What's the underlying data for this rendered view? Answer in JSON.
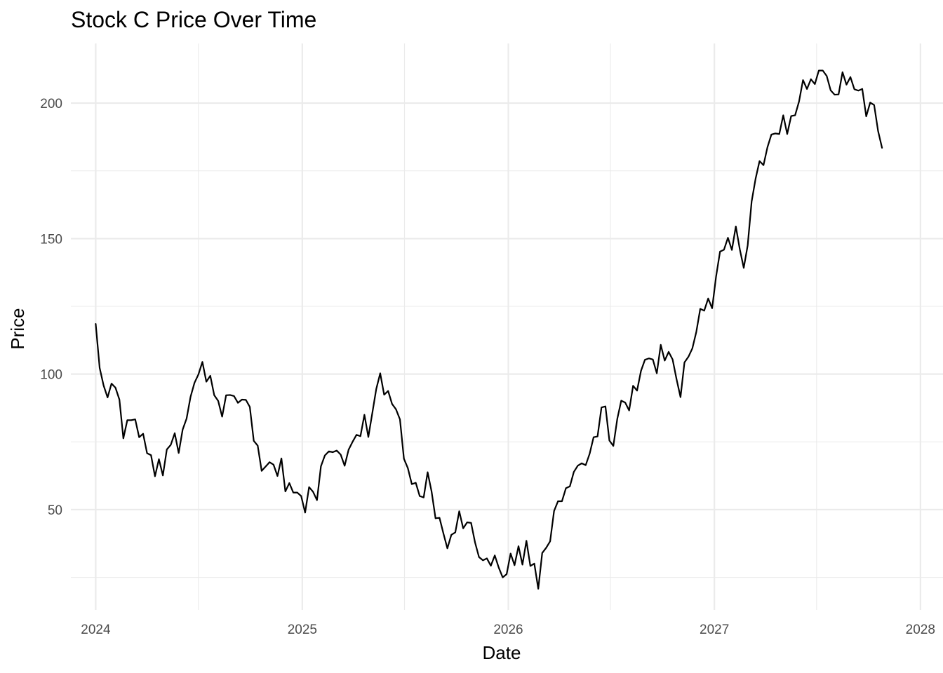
{
  "chart_data": {
    "type": "line",
    "title": "Stock C Price Over Time",
    "xlabel": "Date",
    "ylabel": "Price",
    "xlim": [
      "2023-11-18",
      "2028-02-10"
    ],
    "ylim": [
      13,
      222
    ],
    "x_ticks": [
      {
        "value": "2024-01-01",
        "label": "2024"
      },
      {
        "value": "2025-01-01",
        "label": "2025"
      },
      {
        "value": "2026-01-01",
        "label": "2026"
      },
      {
        "value": "2027-01-01",
        "label": "2027"
      },
      {
        "value": "2028-01-01",
        "label": "2028"
      }
    ],
    "x_minor_ticks": [
      "2024-07-01",
      "2025-07-01",
      "2026-07-01",
      "2027-07-01"
    ],
    "y_ticks": [
      50,
      100,
      150,
      200
    ],
    "y_minor_ticks": [
      25,
      75,
      125,
      175
    ],
    "grid": true,
    "legend": "none",
    "line_color": "#000000",
    "series": [
      {
        "x": [
          "2024-01-01",
          "2024-01-08",
          "2024-01-15",
          "2024-01-22",
          "2024-01-29",
          "2024-02-05",
          "2024-02-12",
          "2024-02-19",
          "2024-02-26",
          "2024-03-04",
          "2024-03-11",
          "2024-03-18",
          "2024-03-25",
          "2024-04-01",
          "2024-04-08",
          "2024-04-15",
          "2024-04-22",
          "2024-04-29",
          "2024-05-06",
          "2024-05-13",
          "2024-05-20",
          "2024-05-27",
          "2024-06-03",
          "2024-06-10",
          "2024-06-17",
          "2024-06-24",
          "2024-07-01",
          "2024-07-08",
          "2024-07-15",
          "2024-07-22",
          "2024-07-29",
          "2024-08-05",
          "2024-08-12",
          "2024-08-19",
          "2024-08-26",
          "2024-09-02",
          "2024-09-09",
          "2024-09-16",
          "2024-09-23",
          "2024-09-30",
          "2024-10-07",
          "2024-10-14",
          "2024-10-21",
          "2024-10-28",
          "2024-11-04",
          "2024-11-11",
          "2024-11-18",
          "2024-11-25",
          "2024-12-02",
          "2024-12-09",
          "2024-12-16",
          "2024-12-23",
          "2024-12-30",
          "2025-01-06",
          "2025-01-13",
          "2025-01-20",
          "2025-01-27",
          "2025-02-03",
          "2025-02-10",
          "2025-02-17",
          "2025-02-24",
          "2025-03-03",
          "2025-03-10",
          "2025-03-17",
          "2025-03-24",
          "2025-03-31",
          "2025-04-07",
          "2025-04-14",
          "2025-04-21",
          "2025-04-28",
          "2025-05-05",
          "2025-05-12",
          "2025-05-19",
          "2025-05-26",
          "2025-06-02",
          "2025-06-09",
          "2025-06-16",
          "2025-06-23",
          "2025-06-30",
          "2025-07-07",
          "2025-07-14",
          "2025-07-21",
          "2025-07-28",
          "2025-08-04",
          "2025-08-11",
          "2025-08-18",
          "2025-08-25",
          "2025-09-01",
          "2025-09-08",
          "2025-09-15",
          "2025-09-22",
          "2025-09-29",
          "2025-10-06",
          "2025-10-13",
          "2025-10-20",
          "2025-10-27",
          "2025-11-03",
          "2025-11-10",
          "2025-11-17",
          "2025-11-24",
          "2025-12-01",
          "2025-12-08",
          "2025-12-15",
          "2025-12-22",
          "2025-12-29",
          "2026-01-05",
          "2026-01-12",
          "2026-01-19",
          "2026-01-26",
          "2026-02-02",
          "2026-02-09",
          "2026-02-16",
          "2026-02-23",
          "2026-03-02",
          "2026-03-09",
          "2026-03-16",
          "2026-03-23",
          "2026-03-30",
          "2026-04-06",
          "2026-04-13",
          "2026-04-20",
          "2026-04-27",
          "2026-05-04",
          "2026-05-11",
          "2026-05-18",
          "2026-05-25",
          "2026-06-01",
          "2026-06-08",
          "2026-06-15",
          "2026-06-22",
          "2026-06-29",
          "2026-07-06",
          "2026-07-13",
          "2026-07-20",
          "2026-07-27",
          "2026-08-03",
          "2026-08-10",
          "2026-08-17",
          "2026-08-24",
          "2026-08-31",
          "2026-09-07",
          "2026-09-14",
          "2026-09-21",
          "2026-09-28",
          "2026-10-05",
          "2026-10-12",
          "2026-10-19",
          "2026-10-26",
          "2026-11-02",
          "2026-11-09",
          "2026-11-16",
          "2026-11-23",
          "2026-11-30",
          "2026-12-07",
          "2026-12-14",
          "2026-12-21",
          "2026-12-28",
          "2027-01-04",
          "2027-01-11",
          "2027-01-18",
          "2027-01-25",
          "2027-02-01",
          "2027-02-08",
          "2027-02-15",
          "2027-02-22",
          "2027-03-01",
          "2027-03-08",
          "2027-03-15",
          "2027-03-22",
          "2027-03-29",
          "2027-04-05",
          "2027-04-12",
          "2027-04-19",
          "2027-04-26",
          "2027-05-03",
          "2027-05-10",
          "2027-05-17",
          "2027-05-24",
          "2027-05-31",
          "2027-06-07",
          "2027-06-14",
          "2027-06-21",
          "2027-06-28",
          "2027-07-05",
          "2027-07-12",
          "2027-07-19",
          "2027-07-26",
          "2027-08-02",
          "2027-08-09",
          "2027-08-16",
          "2027-08-23",
          "2027-08-30",
          "2027-09-06",
          "2027-09-13",
          "2027-09-20",
          "2027-09-27",
          "2027-10-04",
          "2027-10-11",
          "2027-10-18",
          "2027-10-25"
        ],
        "values": [
          118.5,
          102.3,
          95.8,
          91.4,
          96.5,
          95.0,
          90.6,
          76.3,
          83.0,
          83.0,
          83.3,
          76.7,
          78.0,
          70.8,
          70.1,
          62.3,
          68.6,
          62.6,
          72.2,
          73.9,
          78.2,
          70.9,
          79.5,
          83.6,
          91.6,
          96.8,
          99.9,
          104.5,
          97.2,
          99.4,
          92.2,
          90.1,
          84.3,
          92.2,
          92.3,
          91.9,
          89.4,
          90.6,
          90.5,
          87.9,
          75.4,
          73.6,
          64.3,
          65.9,
          67.5,
          66.6,
          62.4,
          68.9,
          56.7,
          59.8,
          56.3,
          56.3,
          55.0,
          48.9,
          58.3,
          56.6,
          53.5,
          66.0,
          70.0,
          71.5,
          71.2,
          71.8,
          70.3,
          66.2,
          72.1,
          75.0,
          77.6,
          77.1,
          85.0,
          76.8,
          85.6,
          94.5,
          100.3,
          92.4,
          93.8,
          89.0,
          87.0,
          83.3,
          68.8,
          65.3,
          59.4,
          59.9,
          55.0,
          54.5,
          63.8,
          56.7,
          46.8,
          47.0,
          41.2,
          35.7,
          40.7,
          41.6,
          49.4,
          43.1,
          45.3,
          45.1,
          37.9,
          32.5,
          31.3,
          32.0,
          29.3,
          33.1,
          28.6,
          25.0,
          26.2,
          33.8,
          29.5,
          36.5,
          29.7,
          38.5,
          29.2,
          30.1,
          20.8,
          34.0,
          35.9,
          38.3,
          49.5,
          53.1,
          53.1,
          57.9,
          58.6,
          63.9,
          66.2,
          67.1,
          66.4,
          70.6,
          76.7,
          77.0,
          87.7,
          88.1,
          75.5,
          73.5,
          83.5,
          90.2,
          89.5,
          86.6,
          95.7,
          93.9,
          101.2,
          105.3,
          105.8,
          105.4,
          100.3,
          110.8,
          105.0,
          108.2,
          105.4,
          98.1,
          91.5,
          104.3,
          106.4,
          109.5,
          115.6,
          124.1,
          123.4,
          127.9,
          124.3,
          136.0,
          145.2,
          145.9,
          150.3,
          145.8,
          154.5,
          146.1,
          139.2,
          147.5,
          163.7,
          172.1,
          178.6,
          177.1,
          183.7,
          188.4,
          188.8,
          188.6,
          195.5,
          188.6,
          195.2,
          195.5,
          200.6,
          208.5,
          205.2,
          208.8,
          207.0,
          212.0,
          212.0,
          210.0,
          204.7,
          203.1,
          203.2,
          211.4,
          206.8,
          209.6,
          205.1,
          204.6,
          205.2,
          195.1,
          200.2,
          199.3,
          189.7,
          183.5
        ]
      }
    ]
  }
}
